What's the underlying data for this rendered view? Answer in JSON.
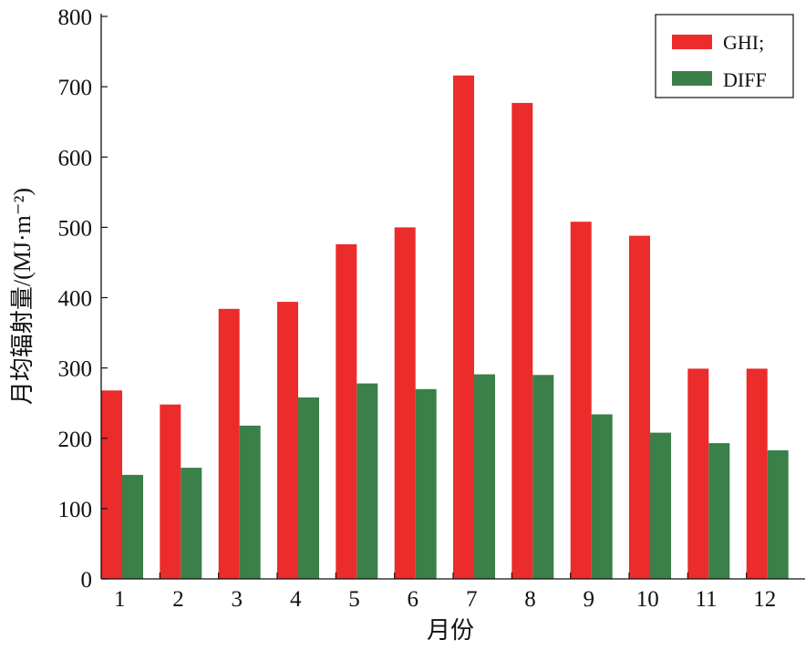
{
  "chart_data": {
    "type": "bar",
    "title": "",
    "xlabel": "月份",
    "ylabel": "月均辐射量/(MJ·m⁻²)",
    "ylim": [
      0,
      800
    ],
    "yticks": [
      "0",
      "100",
      "200",
      "300",
      "400",
      "500",
      "600",
      "700",
      "800"
    ],
    "categories": [
      "1",
      "2",
      "3",
      "4",
      "5",
      "6",
      "7",
      "8",
      "9",
      "10",
      "11",
      "12"
    ],
    "series": [
      {
        "name": "GHI;",
        "color": "#ec2b2b",
        "values": [
          268,
          248,
          384,
          394,
          476,
          500,
          716,
          677,
          508,
          488,
          299,
          299
        ]
      },
      {
        "name": "DIFF",
        "color": "#3a8048",
        "values": [
          148,
          158,
          218,
          258,
          278,
          270,
          291,
          290,
          234,
          208,
          193,
          183
        ]
      }
    ],
    "grid": false,
    "legend_position": "top-right"
  }
}
